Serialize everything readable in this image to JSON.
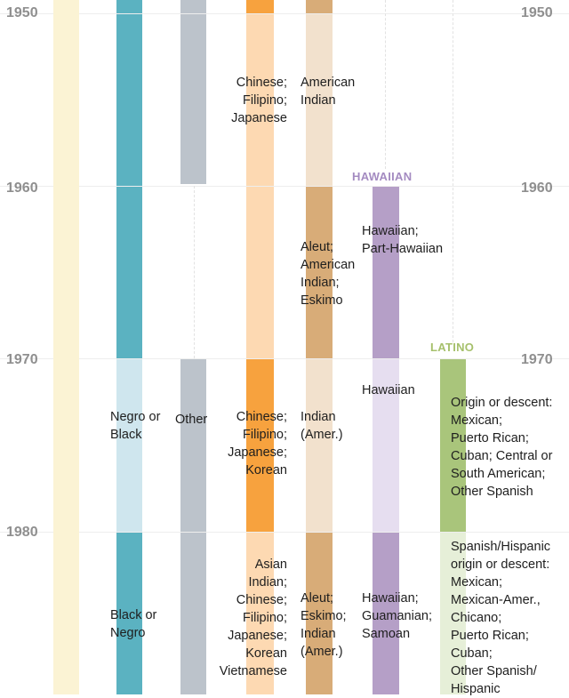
{
  "years": {
    "y1950": "1950",
    "y1960": "1960",
    "y1970": "1970",
    "y1980": "1980"
  },
  "headers": {
    "hawaiian": "HAWAIIAN",
    "latino": "LATINO"
  },
  "labels": {
    "asian_1950": [
      "Chinese;",
      "Filipino;",
      "Japanese"
    ],
    "native_1950": [
      "American",
      "Indian"
    ],
    "native_1960": [
      "Aleut;",
      "American",
      "Indian;",
      "Eskimo"
    ],
    "hawaiian_1960": [
      "Hawaiian;",
      "Part-Hawaiian"
    ],
    "black_1970": [
      "Negro or",
      "Black"
    ],
    "other_1970": [
      "Other"
    ],
    "asian_1970": [
      "Chinese;",
      "Filipino;",
      "Japanese;",
      "Korean"
    ],
    "native_1970": [
      "Indian",
      "(Amer.)"
    ],
    "hawaiian_1970": [
      "Hawaiian"
    ],
    "latino_1970": [
      "Origin or descent:",
      "Mexican;",
      "Puerto Rican;",
      "Cuban; Central or",
      "South American;",
      "Other Spanish"
    ],
    "asian_1980": [
      "Asian",
      "Indian;",
      "Chinese;",
      "Filipino;",
      "Japanese;",
      "Korean",
      "Vietnamese"
    ],
    "black_1980": [
      "Black or",
      "Negro"
    ],
    "native_1980": [
      "Aleut;",
      "Eskimo;",
      "Indian",
      "(Amer.)"
    ],
    "hawaiian_1980": [
      "Hawaiian;",
      "Guamanian;",
      "Samoan"
    ],
    "latino_1980": [
      "Spanish/Hispanic",
      "origin or descent:",
      "Mexican;",
      "Mexican-Amer.,",
      "Chicano;",
      "Puerto Rican;",
      "Cuban;",
      "Other Spanish/",
      "Hispanic"
    ]
  },
  "colors": {
    "white": "#fbf3d4",
    "black_dark": "#5bb2c1",
    "black_light": "#cfe6ee",
    "other": "#bcc3cb",
    "asian_dark": "#f7a23e",
    "asian_light": "#fdd9b2",
    "native_dark": "#d8ac78",
    "native_light": "#f2e1cd",
    "hawaiian_dark": "#b59fc7",
    "hawaiian_light": "#e6def0",
    "latino_dark": "#a9c57b",
    "latino_light": "#e6efd8",
    "hawaiian_header": "#a48bc1",
    "latino_header": "#a6c06c"
  }
}
